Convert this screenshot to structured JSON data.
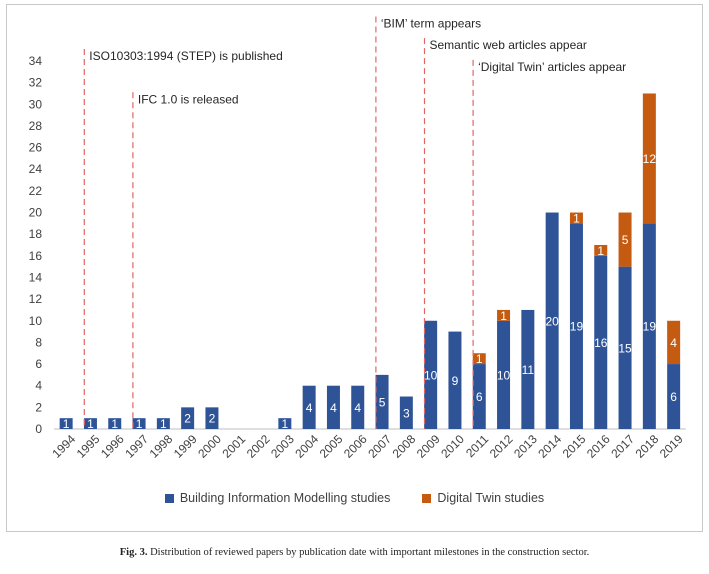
{
  "chart_data": {
    "type": "bar",
    "stacked": true,
    "categories": [
      "1994",
      "1995",
      "1996",
      "1997",
      "1998",
      "1999",
      "2000",
      "2001",
      "2002",
      "2003",
      "2004",
      "2005",
      "2006",
      "2007",
      "2008",
      "2009",
      "2010",
      "2011",
      "2012",
      "2013",
      "2014",
      "2015",
      "2016",
      "2017",
      "2018",
      "2019"
    ],
    "series": [
      {
        "name": "Building Information Modelling studies",
        "color": "#2e5497",
        "values": [
          1,
          1,
          1,
          1,
          1,
          2,
          2,
          0,
          0,
          1,
          4,
          4,
          4,
          5,
          3,
          10,
          9,
          6,
          10,
          11,
          20,
          19,
          16,
          15,
          19,
          6
        ]
      },
      {
        "name": "Digital Twin studies",
        "color": "#c55a11",
        "values": [
          0,
          0,
          0,
          0,
          0,
          0,
          0,
          0,
          0,
          0,
          0,
          0,
          0,
          0,
          0,
          0,
          0,
          1,
          1,
          0,
          0,
          1,
          1,
          5,
          12,
          4
        ]
      }
    ],
    "ylim": [
      0,
      34
    ],
    "yticks": [
      0,
      2,
      4,
      6,
      8,
      10,
      12,
      14,
      16,
      18,
      20,
      22,
      24,
      26,
      28,
      30,
      32,
      34
    ],
    "grid": false,
    "legend_position": "bottom",
    "annotations": [
      {
        "x": "1995",
        "text": "ISO10303:1994 (STEP) is published",
        "level": 34
      },
      {
        "x": "1997",
        "text": "IFC 1.0 is released",
        "level": 30
      },
      {
        "x": "2007",
        "text": "‘BIM’ term appears",
        "level": 37
      },
      {
        "x": "2009",
        "text": "Semantic web articles appear",
        "level": 35
      },
      {
        "x": "2011",
        "text": "‘Digital Twin’ articles appear",
        "level": 33
      }
    ]
  },
  "caption": {
    "label": "Fig. 3.",
    "text": "Distribution of reviewed papers by publication date with important milestones in the construction sector."
  }
}
